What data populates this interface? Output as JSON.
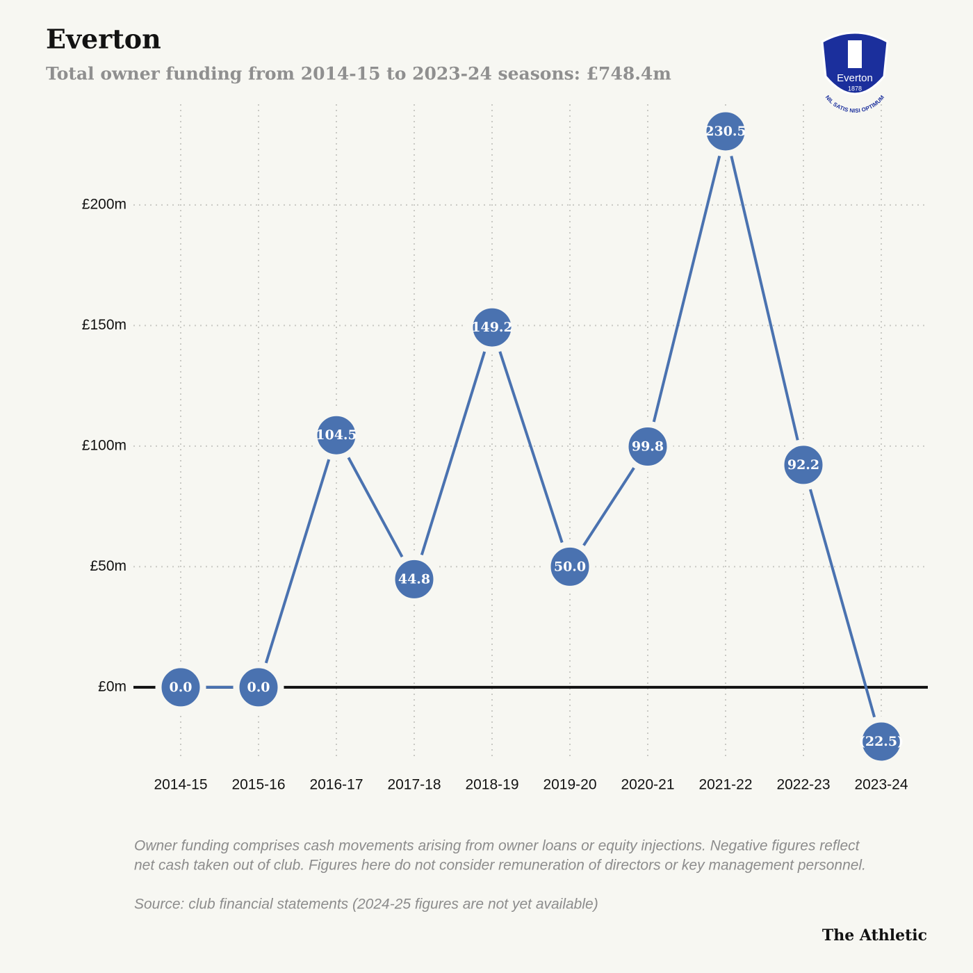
{
  "chart_data": {
    "type": "line",
    "title": "Everton",
    "subtitle": "Total owner funding from 2014-15 to 2023-24 seasons: £748.4m",
    "categories": [
      "2014-15",
      "2015-16",
      "2016-17",
      "2017-18",
      "2018-19",
      "2019-20",
      "2020-21",
      "2021-22",
      "2022-23",
      "2023-24"
    ],
    "values": [
      0,
      0,
      104.5,
      44.8,
      149.2,
      50.0,
      99.8,
      230.5,
      92.2,
      -22.5
    ],
    "value_labels": [
      "0.0",
      "0.0",
      "104.5",
      "44.8",
      "149.2",
      "50.0",
      "99.8",
      "230.5",
      "92.2",
      "(22.5)"
    ],
    "color": "#4a72b0",
    "ylim": [
      -30,
      240
    ],
    "yticks": [
      {
        "value": 0,
        "label": "£0m"
      },
      {
        "value": 50,
        "label": "£50m"
      },
      {
        "value": 100,
        "label": "£100m"
      },
      {
        "value": 150,
        "label": "£150m"
      },
      {
        "value": 200,
        "label": "£200m"
      }
    ],
    "grid": true,
    "notes": [
      "Owner funding comprises cash movements arising from owner loans or equity injections. Negative figures reflect",
      "net cash taken out of club. Figures here do not consider remuneration of directors or key management personnel."
    ],
    "source": "Source: club financial statements (2024-25 figures are not yet available)",
    "brand": "The Athletic",
    "logo": {
      "name": "Everton",
      "year": "1878",
      "motto": "NIL SATIS NISI OPTIMUM"
    }
  }
}
